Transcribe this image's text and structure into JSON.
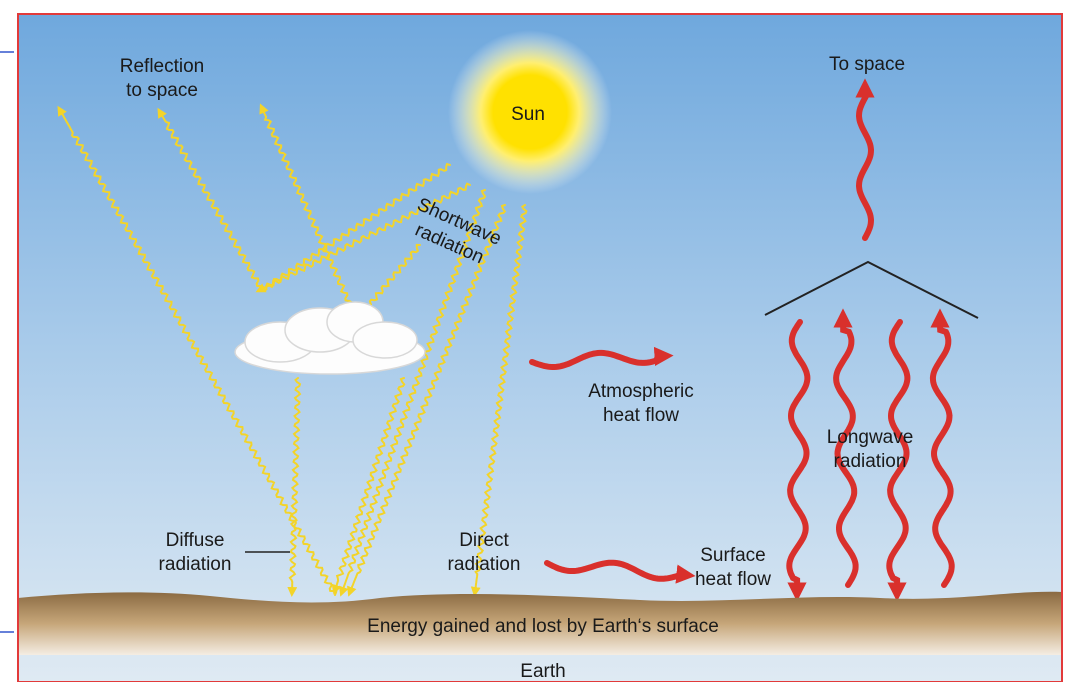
{
  "labels": {
    "reflection": [
      "Reflection",
      "to space"
    ],
    "sun": "Sun",
    "shortwave": [
      "Shortwave",
      "radiation"
    ],
    "to_space": "To space",
    "atmospheric": [
      "Atmospheric",
      "heat flow"
    ],
    "longwave": [
      "Longwave",
      "radiation"
    ],
    "diffuse": [
      "Diffuse",
      "radiation"
    ],
    "direct": [
      "Direct",
      "radiation"
    ],
    "surface": [
      "Surface",
      "heat flow"
    ],
    "ground": "Energy gained and lost by Earth‘s surface",
    "earth": "Earth"
  }
}
